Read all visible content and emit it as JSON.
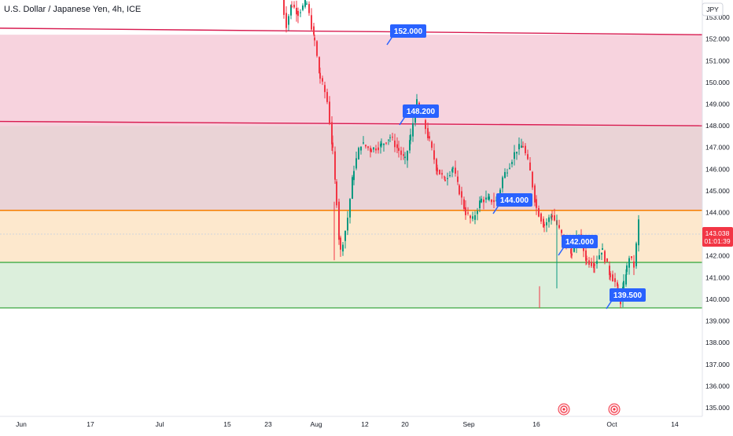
{
  "header": {
    "title": "U.S. Dollar / Japanese Yen, 4h, ICE",
    "currency": "JPY"
  },
  "chart_data": {
    "type": "candlestick",
    "title": "U.S. Dollar / Japanese Yen, 4h, ICE",
    "ylim": [
      134.6,
      153.8
    ],
    "y_ticks": [
      "153.000",
      "152.000",
      "151.000",
      "150.000",
      "149.000",
      "148.000",
      "147.000",
      "146.000",
      "145.000",
      "144.000",
      "143.000",
      "142.000",
      "141.000",
      "140.000",
      "139.000",
      "138.000",
      "137.000",
      "136.000",
      "135.000"
    ],
    "x_ticks": [
      "Jun",
      "17",
      "Jul",
      "15",
      "23",
      "Aug",
      "12",
      "20",
      "Sep",
      "16",
      "Oct",
      "14"
    ],
    "zones": [
      {
        "name": "red-zone",
        "from": 148.0,
        "to": 152.2,
        "color": "#f7d3de"
      },
      {
        "name": "mauve-zone",
        "from": 144.1,
        "to": 148.0,
        "color": "#ead3d6"
      },
      {
        "name": "orange-zone",
        "from": 141.7,
        "to": 144.1,
        "color": "#fde8cd"
      },
      {
        "name": "green-zone",
        "from": 139.6,
        "to": 141.7,
        "color": "#dcefdc"
      }
    ],
    "lines": [
      {
        "name": "upper-red-line",
        "y_start": 152.5,
        "y_end": 152.2,
        "color": "#d81b50"
      },
      {
        "name": "mid-red-line",
        "y_start": 148.2,
        "y_end": 148.0,
        "color": "#d81b50"
      },
      {
        "name": "orange-line",
        "value": 144.1,
        "color": "#f57c00"
      },
      {
        "name": "upper-green-line",
        "value": 141.7,
        "color": "#4caf50"
      },
      {
        "name": "lower-green-line",
        "value": 139.6,
        "color": "#4caf50"
      }
    ],
    "labels": [
      {
        "name": "label-152",
        "text": "152.000"
      },
      {
        "name": "label-148-2",
        "text": "148.200"
      },
      {
        "name": "label-144",
        "text": "144.000"
      },
      {
        "name": "label-142",
        "text": "142.000"
      },
      {
        "name": "label-139-5",
        "text": "139.500"
      }
    ],
    "price_path": [
      [
        0,
        153.9
      ],
      [
        0.08,
        152.6
      ],
      [
        0.18,
        153.6
      ],
      [
        0.3,
        153.2
      ],
      [
        0.45,
        153.7
      ],
      [
        0.6,
        151.9
      ],
      [
        0.7,
        150.2
      ],
      [
        0.82,
        149.3
      ],
      [
        0.92,
        147.1
      ],
      [
        1.0,
        144.5
      ],
      [
        1.05,
        142.1
      ],
      [
        1.15,
        143.5
      ],
      [
        1.25,
        146.0
      ],
      [
        1.35,
        147.2
      ],
      [
        1.5,
        146.9
      ],
      [
        1.65,
        147.1
      ],
      [
        1.78,
        147.5
      ],
      [
        1.9,
        146.9
      ],
      [
        2.0,
        146.4
      ],
      [
        2.08,
        147.4
      ],
      [
        2.18,
        149.1
      ],
      [
        2.28,
        148.3
      ],
      [
        2.38,
        147.3
      ],
      [
        2.5,
        146.0
      ],
      [
        2.62,
        145.5
      ],
      [
        2.75,
        146.1
      ],
      [
        2.85,
        145.0
      ],
      [
        2.95,
        144.0
      ],
      [
        3.05,
        143.6
      ],
      [
        3.18,
        144.6
      ],
      [
        3.3,
        144.6
      ],
      [
        3.42,
        144.5
      ],
      [
        3.5,
        145.6
      ],
      [
        3.6,
        146.2
      ],
      [
        3.7,
        146.9
      ],
      [
        3.8,
        147.1
      ],
      [
        3.9,
        146.0
      ],
      [
        4.0,
        144.2
      ],
      [
        4.1,
        143.4
      ],
      [
        4.2,
        143.9
      ],
      [
        4.35,
        142.8
      ],
      [
        4.45,
        142.1
      ],
      [
        4.55,
        143.0
      ],
      [
        4.65,
        141.8
      ],
      [
        4.75,
        141.6
      ],
      [
        4.85,
        142.3
      ],
      [
        4.95,
        141.2
      ],
      [
        5.05,
        140.8
      ],
      [
        5.15,
        140.4
      ],
      [
        5.25,
        139.9
      ],
      [
        5.35,
        140.6
      ],
      [
        5.45,
        141.3
      ],
      [
        5.55,
        142.0
      ],
      [
        5.62,
        141.8
      ],
      [
        5.72,
        141.5
      ],
      [
        5.8,
        142.4
      ],
      [
        5.88,
        143.7
      ],
      [
        5.95,
        143.0
      ]
    ],
    "current_price": "143.038",
    "countdown": "01:01:39",
    "price_color": "#f23645",
    "candle_up_color": "#089981",
    "candle_down_color": "#f23645"
  }
}
